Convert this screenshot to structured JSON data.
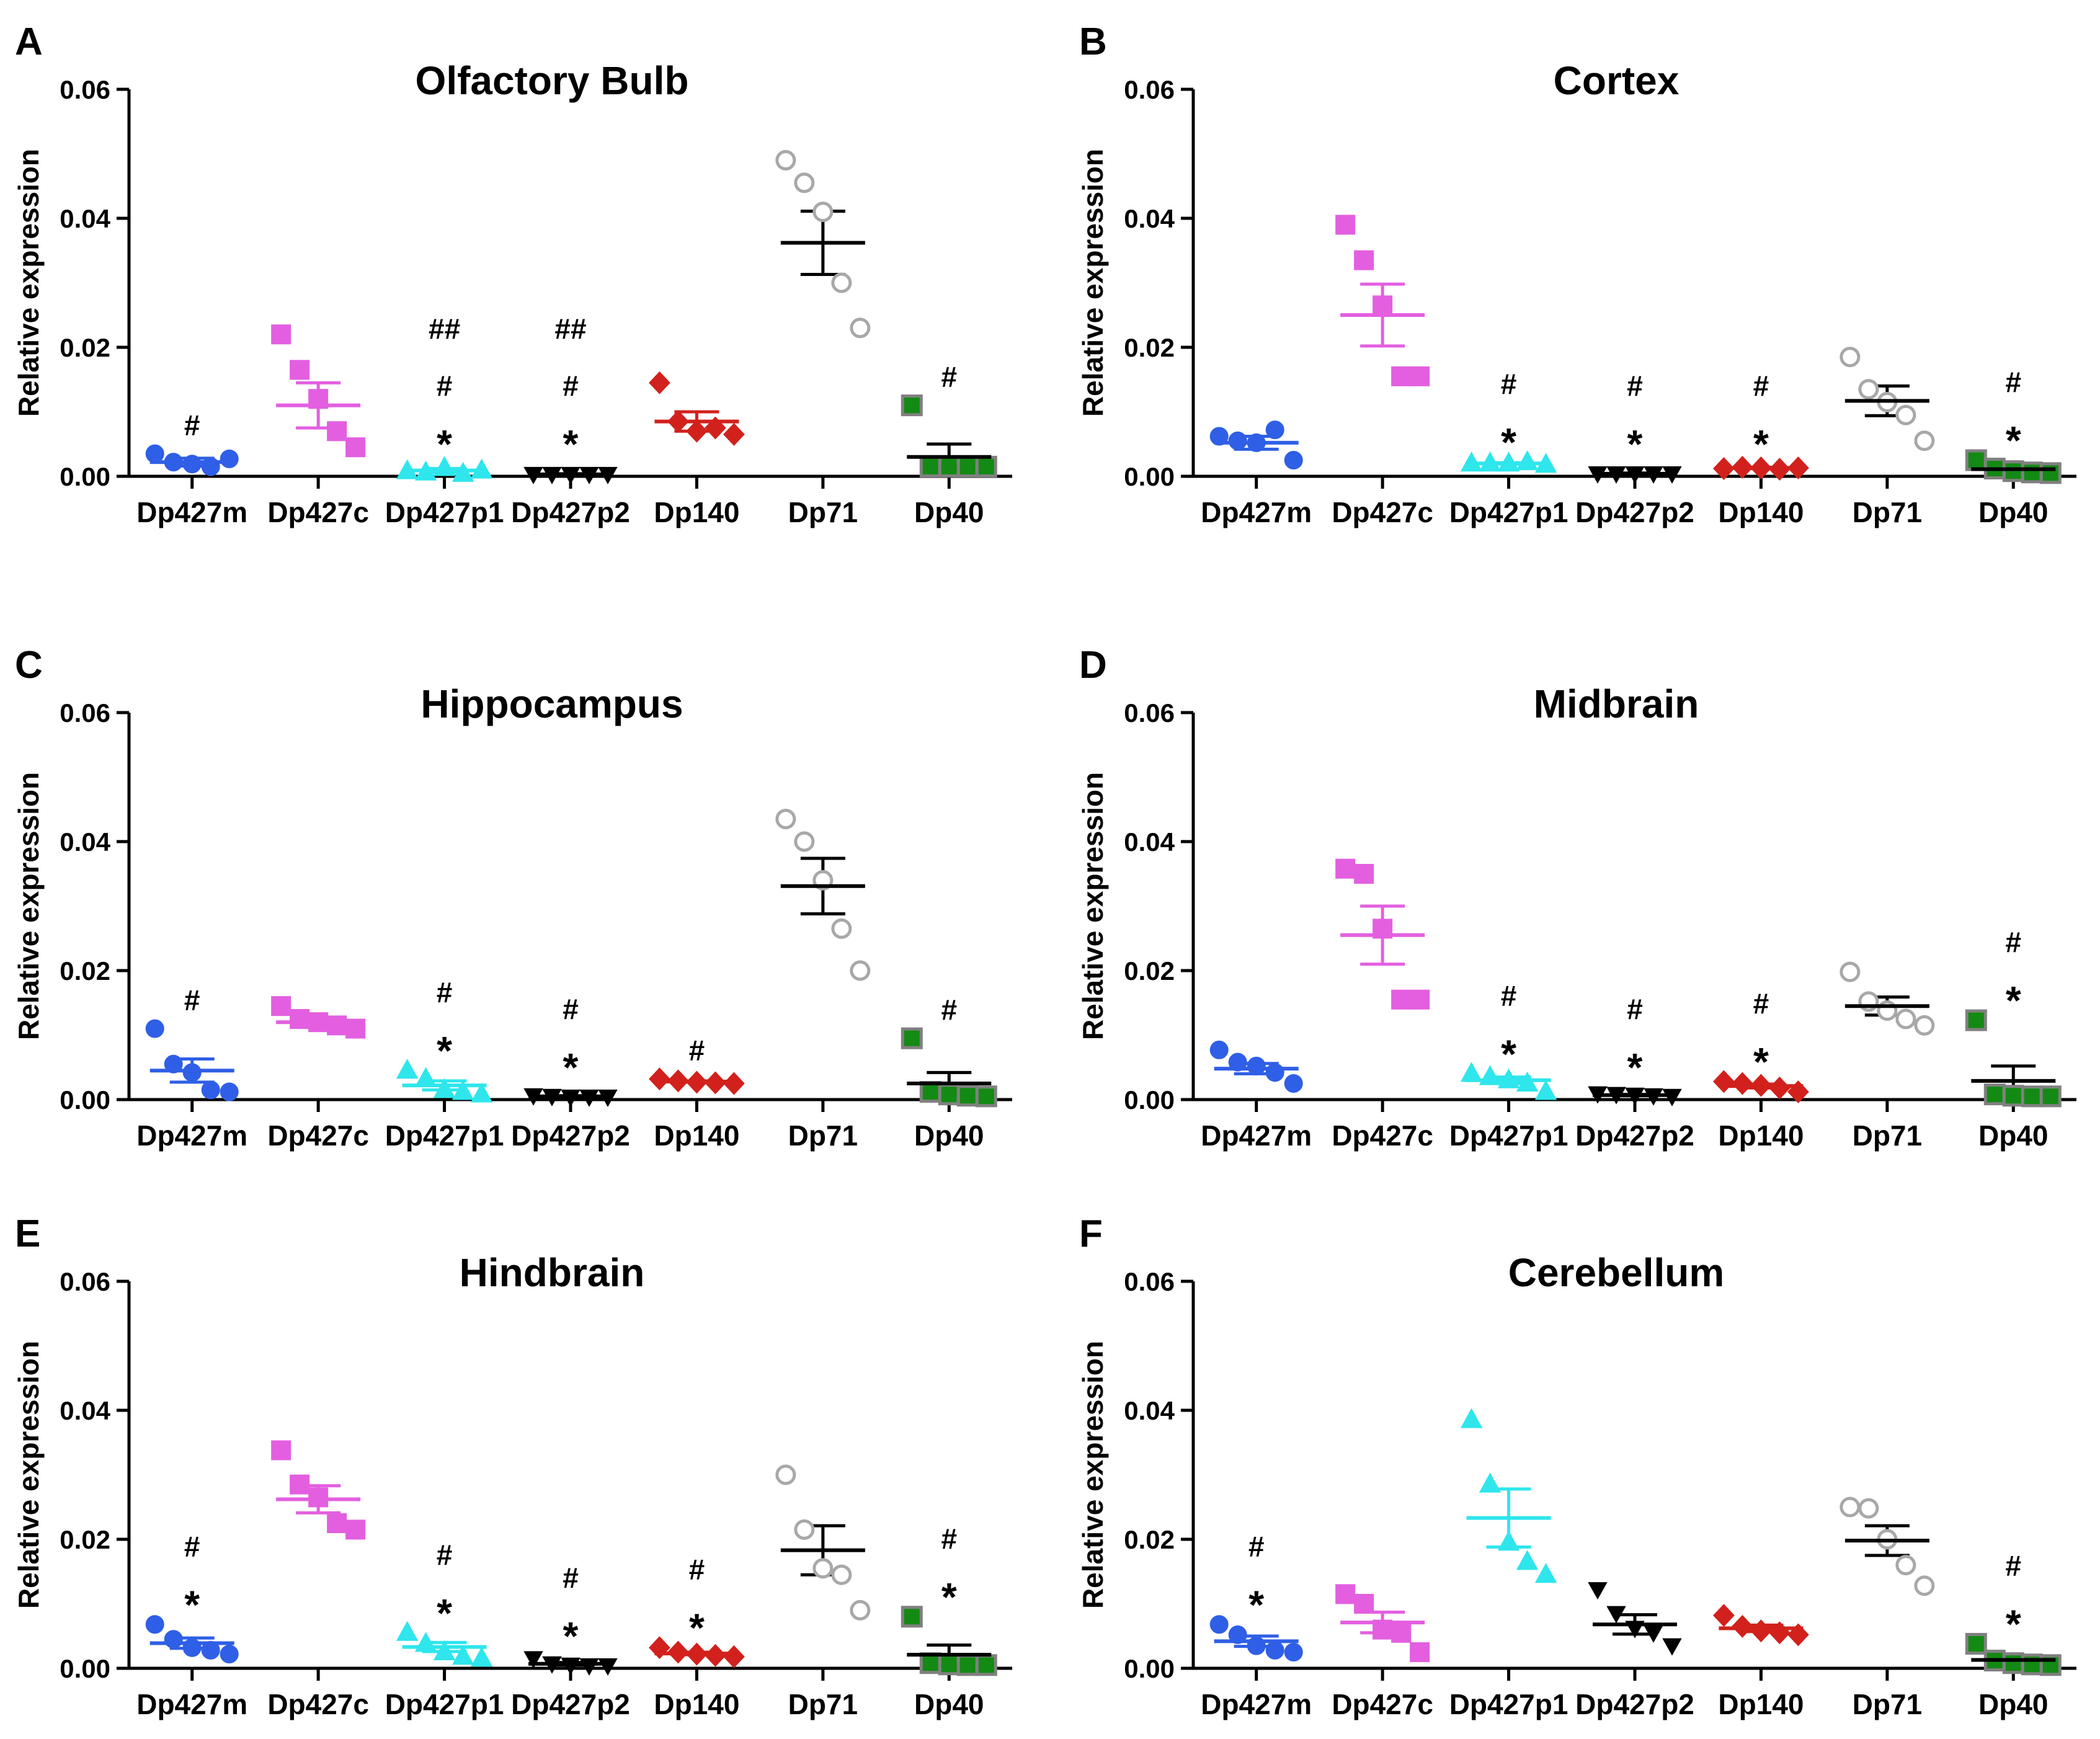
{
  "figure": {
    "ylabel": "Relative expression"
  },
  "chart_data": [
    {
      "panel": "A",
      "title": "Olfactory Bulb",
      "type": "scatter",
      "ylabel": "Relative expression",
      "ylim": [
        0,
        0.06
      ],
      "yticks": [
        "0.00",
        "0.02",
        "0.04",
        "0.06"
      ],
      "categories": [
        "Dp427m",
        "Dp427c",
        "Dp427p1",
        "Dp427p2",
        "Dp140",
        "Dp71",
        "Dp40"
      ],
      "groups": [
        {
          "points": [
            0.0035,
            0.0022,
            0.0019,
            0.0015,
            0.0027
          ],
          "mean": 0.0022,
          "sem": 0.0006,
          "annotations": [
            "#"
          ]
        },
        {
          "points": [
            0.022,
            0.0165,
            0.012,
            0.007,
            0.0045
          ],
          "mean": 0.011,
          "sem": 0.0035,
          "annotations": []
        },
        {
          "points": [
            0.0008,
            0.0006,
            0.0013,
            0.0004,
            0.0009
          ],
          "mean": 0.0009,
          "sem": 0.0003,
          "annotations": [
            "##",
            "#",
            "*"
          ]
        },
        {
          "points": [
            0.0003,
            0.0003,
            0.0003,
            0.0003,
            0.0003
          ],
          "mean": 0.0003,
          "sem": 0.0001,
          "annotations": [
            "##",
            "#",
            "*"
          ]
        },
        {
          "points": [
            0.0145,
            0.0085,
            0.007,
            0.0075,
            0.0065
          ],
          "mean": 0.0085,
          "sem": 0.0015,
          "annotations": []
        },
        {
          "points": [
            0.049,
            0.0455,
            0.041,
            0.03,
            0.023
          ],
          "mean": 0.0362,
          "sem": 0.0049,
          "annotations": []
        },
        {
          "points": [
            0.011,
            0.0015,
            0.0015,
            0.0015,
            0.0015
          ],
          "mean": 0.003,
          "sem": 0.002,
          "annotations": [
            "#"
          ]
        }
      ]
    },
    {
      "panel": "B",
      "title": "Cortex",
      "type": "scatter",
      "ylabel": "Relative expression",
      "ylim": [
        0,
        0.06
      ],
      "yticks": [
        "0.00",
        "0.02",
        "0.04",
        "0.06"
      ],
      "categories": [
        "Dp427m",
        "Dp427c",
        "Dp427p1",
        "Dp427p2",
        "Dp140",
        "Dp71",
        "Dp40"
      ],
      "groups": [
        {
          "points": [
            0.0062,
            0.0055,
            0.0052,
            0.0072,
            0.0025
          ],
          "mean": 0.0052,
          "sem": 0.001,
          "annotations": []
        },
        {
          "points": [
            0.039,
            0.0335,
            0.0265,
            0.0155,
            0.0155
          ],
          "mean": 0.025,
          "sem": 0.0048,
          "annotations": []
        },
        {
          "points": [
            0.002,
            0.002,
            0.002,
            0.0022,
            0.0018
          ],
          "mean": 0.002,
          "sem": 0.0001,
          "annotations": [
            "#",
            "*"
          ]
        },
        {
          "points": [
            0.0004,
            0.0004,
            0.0004,
            0.0004,
            0.0004
          ],
          "mean": 0.0004,
          "sem": 0.0001,
          "annotations": [
            "#",
            "*"
          ]
        },
        {
          "points": [
            0.0012,
            0.0014,
            0.0013,
            0.0011,
            0.0013
          ],
          "mean": 0.0013,
          "sem": 0.0001,
          "annotations": [
            "#",
            "*"
          ]
        },
        {
          "points": [
            0.0185,
            0.0135,
            0.0115,
            0.0095,
            0.0055
          ],
          "mean": 0.0117,
          "sem": 0.0023,
          "annotations": []
        },
        {
          "points": [
            0.0025,
            0.0012,
            0.0008,
            0.0006,
            0.0005
          ],
          "mean": 0.0011,
          "sem": 0.0004,
          "annotations": [
            "#",
            "*"
          ]
        }
      ]
    },
    {
      "panel": "C",
      "title": "Hippocampus",
      "type": "scatter",
      "ylabel": "Relative expression",
      "ylim": [
        0,
        0.06
      ],
      "yticks": [
        "0.00",
        "0.02",
        "0.04",
        "0.06"
      ],
      "categories": [
        "Dp427m",
        "Dp427c",
        "Dp427p1",
        "Dp427p2",
        "Dp140",
        "Dp71",
        "Dp40"
      ],
      "groups": [
        {
          "points": [
            0.011,
            0.0055,
            0.0042,
            0.0015,
            0.0012
          ],
          "mean": 0.0045,
          "sem": 0.0018,
          "annotations": [
            "#"
          ]
        },
        {
          "points": [
            0.0145,
            0.0125,
            0.012,
            0.0115,
            0.011
          ],
          "mean": 0.012,
          "sem": 0.0006,
          "annotations": []
        },
        {
          "points": [
            0.0045,
            0.0032,
            0.0015,
            0.0012,
            0.0008
          ],
          "mean": 0.0022,
          "sem": 0.0007,
          "annotations": [
            "#",
            "*"
          ]
        },
        {
          "points": [
            0.0006,
            0.0005,
            0.0004,
            0.0004,
            0.0004
          ],
          "mean": 0.0005,
          "sem": 0.0001,
          "annotations": [
            "#",
            "*"
          ]
        },
        {
          "points": [
            0.0032,
            0.0029,
            0.0027,
            0.0026,
            0.0025
          ],
          "mean": 0.0028,
          "sem": 0.0001,
          "annotations": [
            "#"
          ]
        },
        {
          "points": [
            0.0435,
            0.04,
            0.034,
            0.0265,
            0.02
          ],
          "mean": 0.0331,
          "sem": 0.0043,
          "annotations": []
        },
        {
          "points": [
            0.0095,
            0.0012,
            0.0008,
            0.0006,
            0.0005
          ],
          "mean": 0.0025,
          "sem": 0.0017,
          "annotations": [
            "#"
          ]
        }
      ]
    },
    {
      "panel": "D",
      "title": "Midbrain",
      "type": "scatter",
      "ylabel": "Relative expression",
      "ylim": [
        0,
        0.06
      ],
      "yticks": [
        "0.00",
        "0.02",
        "0.04",
        "0.06"
      ],
      "categories": [
        "Dp427m",
        "Dp427c",
        "Dp427p1",
        "Dp427p2",
        "Dp140",
        "Dp71",
        "Dp40"
      ],
      "groups": [
        {
          "points": [
            0.0077,
            0.0058,
            0.0052,
            0.0042,
            0.0025
          ],
          "mean": 0.0048,
          "sem": 0.0008,
          "annotations": []
        },
        {
          "points": [
            0.0358,
            0.035,
            0.0265,
            0.0155,
            0.0155
          ],
          "mean": 0.0255,
          "sem": 0.0045,
          "annotations": []
        },
        {
          "points": [
            0.004,
            0.0035,
            0.003,
            0.0025,
            0.0012
          ],
          "mean": 0.003,
          "sem": 0.0005,
          "annotations": [
            "#",
            "*"
          ]
        },
        {
          "points": [
            0.0009,
            0.0008,
            0.0007,
            0.0006,
            0.0005
          ],
          "mean": 0.0007,
          "sem": 0.0001,
          "annotations": [
            "#",
            "*"
          ]
        },
        {
          "points": [
            0.0028,
            0.0025,
            0.0022,
            0.0018,
            0.0012
          ],
          "mean": 0.0021,
          "sem": 0.0003,
          "annotations": [
            "#",
            "*"
          ]
        },
        {
          "points": [
            0.0198,
            0.0152,
            0.0138,
            0.0125,
            0.0115
          ],
          "mean": 0.0145,
          "sem": 0.0014,
          "annotations": []
        },
        {
          "points": [
            0.0123,
            0.0008,
            0.0006,
            0.0005,
            0.0005
          ],
          "mean": 0.0029,
          "sem": 0.0023,
          "annotations": [
            "#",
            "*"
          ]
        }
      ]
    },
    {
      "panel": "E",
      "title": "Hindbrain",
      "type": "scatter",
      "ylabel": "Relative expression",
      "ylim": [
        0,
        0.06
      ],
      "yticks": [
        "0.00",
        "0.02",
        "0.04",
        "0.06"
      ],
      "categories": [
        "Dp427m",
        "Dp427c",
        "Dp427p1",
        "Dp427p2",
        "Dp140",
        "Dp71",
        "Dp40"
      ],
      "groups": [
        {
          "points": [
            0.0068,
            0.0045,
            0.0032,
            0.0028,
            0.0022
          ],
          "mean": 0.0039,
          "sem": 0.0008,
          "annotations": [
            "#",
            "*"
          ]
        },
        {
          "points": [
            0.0338,
            0.0285,
            0.0265,
            0.0225,
            0.0215
          ],
          "mean": 0.0262,
          "sem": 0.0021,
          "annotations": []
        },
        {
          "points": [
            0.0055,
            0.0038,
            0.0025,
            0.0018,
            0.0015
          ],
          "mean": 0.0033,
          "sem": 0.0007,
          "annotations": [
            "#",
            "*"
          ]
        },
        {
          "points": [
            0.0015,
            0.0007,
            0.0005,
            0.0004,
            0.0004
          ],
          "mean": 0.0007,
          "sem": 0.0002,
          "annotations": [
            "#",
            "*"
          ]
        },
        {
          "points": [
            0.0032,
            0.0025,
            0.0022,
            0.002,
            0.0018
          ],
          "mean": 0.0023,
          "sem": 0.0002,
          "annotations": [
            "#",
            "*"
          ]
        },
        {
          "points": [
            0.03,
            0.0215,
            0.0155,
            0.0145,
            0.009
          ],
          "mean": 0.0183,
          "sem": 0.0038,
          "annotations": []
        },
        {
          "points": [
            0.008,
            0.0008,
            0.0006,
            0.0005,
            0.0005
          ],
          "mean": 0.0021,
          "sem": 0.0015,
          "annotations": [
            "#",
            "*"
          ]
        }
      ]
    },
    {
      "panel": "F",
      "title": "Cerebellum",
      "type": "scatter",
      "ylabel": "Relative expression",
      "ylim": [
        0,
        0.06
      ],
      "yticks": [
        "0.00",
        "0.02",
        "0.04",
        "0.06"
      ],
      "categories": [
        "Dp427m",
        "Dp427c",
        "Dp427p1",
        "Dp427p2",
        "Dp140",
        "Dp71",
        "Dp40"
      ],
      "groups": [
        {
          "points": [
            0.0068,
            0.0052,
            0.0035,
            0.0028,
            0.0025
          ],
          "mean": 0.0042,
          "sem": 0.0008,
          "annotations": [
            "#",
            "*"
          ]
        },
        {
          "points": [
            0.0115,
            0.01,
            0.006,
            0.0055,
            0.0025
          ],
          "mean": 0.0071,
          "sem": 0.0016,
          "annotations": []
        },
        {
          "points": [
            0.0385,
            0.0285,
            0.0195,
            0.0165,
            0.0145
          ],
          "mean": 0.0233,
          "sem": 0.0045,
          "annotations": []
        },
        {
          "points": [
            0.0122,
            0.0085,
            0.0062,
            0.0055,
            0.0035
          ],
          "mean": 0.0068,
          "sem": 0.0015,
          "annotations": []
        },
        {
          "points": [
            0.0082,
            0.0065,
            0.0058,
            0.0055,
            0.0052
          ],
          "mean": 0.0062,
          "sem": 0.0005,
          "annotations": []
        },
        {
          "points": [
            0.025,
            0.0248,
            0.02,
            0.016,
            0.0128
          ],
          "mean": 0.0198,
          "sem": 0.0023,
          "annotations": []
        },
        {
          "points": [
            0.0038,
            0.0012,
            0.0008,
            0.0006,
            0.0005
          ],
          "mean": 0.0013,
          "sem": 0.0007,
          "annotations": [
            "#",
            "*"
          ]
        }
      ]
    }
  ],
  "styles": [
    {
      "shape": "circle",
      "fill": "#2f5fe6",
      "stroke": "#2f5fe6",
      "line": "#2f5fe6"
    },
    {
      "shape": "square",
      "fill": "#e35fe0",
      "stroke": "#e35fe0",
      "line": "#e35fe0"
    },
    {
      "shape": "triangle",
      "fill": "#2ee6ec",
      "stroke": "#2ee6ec",
      "line": "#2ee6ec"
    },
    {
      "shape": "triangle-down",
      "fill": "#000000",
      "stroke": "#000000",
      "line": "#000000"
    },
    {
      "shape": "diamond",
      "fill": "#d2211c",
      "stroke": "#d2211c",
      "line": "#d2211c"
    },
    {
      "shape": "circle",
      "fill": "#ffffff",
      "stroke": "#a8a8a8",
      "line": "#000000"
    },
    {
      "shape": "square",
      "fill": "#138a13",
      "stroke": "#808080",
      "line": "#000000"
    }
  ]
}
